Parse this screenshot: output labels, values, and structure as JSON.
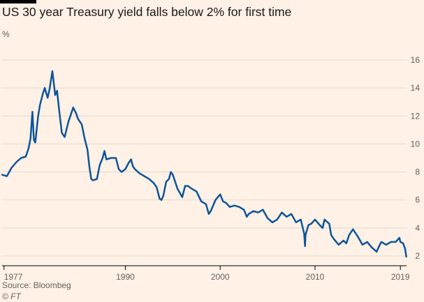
{
  "title": "US 30 year Treasury yield falls below 2% for first time",
  "unit": "%",
  "source": "Source: Bloombeg",
  "credit": "© FT",
  "colors": {
    "background": "#fff1e5",
    "line": "#0f5499",
    "grid": "#e6d9ce",
    "text": "#66605c"
  },
  "chart_data": {
    "type": "line",
    "title": "US 30 year Treasury yield falls below 2% for first time",
    "ylabel": "%",
    "xlabel": "",
    "ylim": [
      1.3,
      16.3
    ],
    "xlim": [
      1977,
      2019.65
    ],
    "y_ticks": [
      2,
      4,
      6,
      8,
      10,
      12,
      14,
      16
    ],
    "x_tick_labels": [
      {
        "x": 1977.2,
        "label": "1977"
      },
      {
        "x": 1990,
        "label": "1990"
      },
      {
        "x": 2000,
        "label": "2000"
      },
      {
        "x": 2010,
        "label": "2010"
      },
      {
        "x": 2019,
        "label": "2019"
      }
    ],
    "grid": "horizontal",
    "series": [
      {
        "x": [
          1977.0,
          1977.5,
          1978.0,
          1978.5,
          1979.0,
          1979.5,
          1979.8,
          1980.0,
          1980.2,
          1980.35,
          1980.5,
          1980.8,
          1981.0,
          1981.3,
          1981.5,
          1981.8,
          1982.0,
          1982.3,
          1982.6,
          1982.8,
          1983.0,
          1983.3,
          1983.6,
          1984.0,
          1984.25,
          1984.5,
          1984.8,
          1985.0,
          1985.4,
          1985.7,
          1986.0,
          1986.2,
          1986.4,
          1986.6,
          1987.0,
          1987.3,
          1987.6,
          1987.8,
          1988.0,
          1988.5,
          1989.0,
          1989.3,
          1989.6,
          1990.0,
          1990.3,
          1990.6,
          1990.8,
          1991.0,
          1991.5,
          1992.0,
          1992.5,
          1993.0,
          1993.3,
          1993.6,
          1993.8,
          1994.0,
          1994.3,
          1994.6,
          1994.8,
          1995.0,
          1995.5,
          1996.0,
          1996.3,
          1996.6,
          1997.0,
          1997.5,
          1998.0,
          1998.5,
          1998.8,
          1999.0,
          1999.5,
          2000.0,
          2000.3,
          2000.6,
          2001.0,
          2001.5,
          2002.0,
          2002.5,
          2002.8,
          2003.0,
          2003.5,
          2004.0,
          2004.5,
          2005.0,
          2005.5,
          2006.0,
          2006.5,
          2007.0,
          2007.5,
          2008.0,
          2008.5,
          2008.85,
          2008.95,
          2009.0,
          2009.3,
          2009.6,
          2010.0,
          2010.5,
          2010.8,
          2011.0,
          2011.5,
          2011.7,
          2012.0,
          2012.5,
          2013.0,
          2013.3,
          2013.6,
          2013.9,
          2014.0,
          2014.5,
          2015.0,
          2015.5,
          2016.0,
          2016.5,
          2016.9,
          2017.0,
          2017.5,
          2018.0,
          2018.5,
          2018.9,
          2019.0,
          2019.3,
          2019.5,
          2019.62
        ],
        "values": [
          7.8,
          7.7,
          8.3,
          8.7,
          9.0,
          9.1,
          9.7,
          10.4,
          12.3,
          10.3,
          10.1,
          12.0,
          12.8,
          13.6,
          14.0,
          13.3,
          13.9,
          15.2,
          13.5,
          13.8,
          12.5,
          10.8,
          10.5,
          11.6,
          12.1,
          12.6,
          12.2,
          11.8,
          11.4,
          10.4,
          9.6,
          8.4,
          7.5,
          7.4,
          7.5,
          8.5,
          9.0,
          9.5,
          8.9,
          9.0,
          9.0,
          8.2,
          8.0,
          8.2,
          8.6,
          8.9,
          8.4,
          8.2,
          7.9,
          7.7,
          7.5,
          7.2,
          6.9,
          6.1,
          6.0,
          6.3,
          7.3,
          7.5,
          8.0,
          7.8,
          6.8,
          6.2,
          7.0,
          7.0,
          6.8,
          6.6,
          5.9,
          5.7,
          5.0,
          5.2,
          6.0,
          6.4,
          5.9,
          5.8,
          5.5,
          5.6,
          5.5,
          5.3,
          4.8,
          5.0,
          5.2,
          5.1,
          5.3,
          4.7,
          4.4,
          4.6,
          5.1,
          4.8,
          5.0,
          4.4,
          4.6,
          3.6,
          2.7,
          3.5,
          4.2,
          4.3,
          4.6,
          4.2,
          4.0,
          4.6,
          4.3,
          3.5,
          3.2,
          2.8,
          3.1,
          2.9,
          3.5,
          3.8,
          3.9,
          3.4,
          2.8,
          3.0,
          2.6,
          2.3,
          2.9,
          3.0,
          2.8,
          3.0,
          3.0,
          3.3,
          3.0,
          2.9,
          2.5,
          1.95
        ]
      }
    ]
  }
}
